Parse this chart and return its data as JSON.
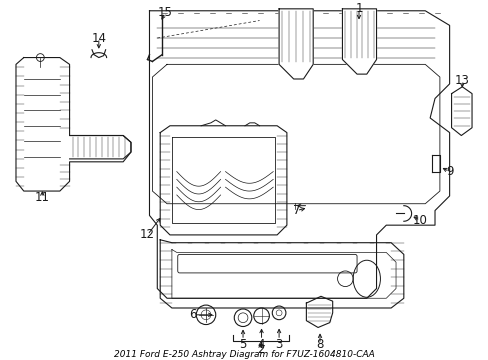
{
  "title": "2011 Ford E-250 Ashtray Diagram for F7UZ-1604810-CAA",
  "background_color": "#ffffff",
  "fig_width": 4.89,
  "fig_height": 3.6,
  "dpi": 100,
  "text_color": "#000000",
  "label_fontsize": 8.5,
  "title_fontsize": 6.5
}
